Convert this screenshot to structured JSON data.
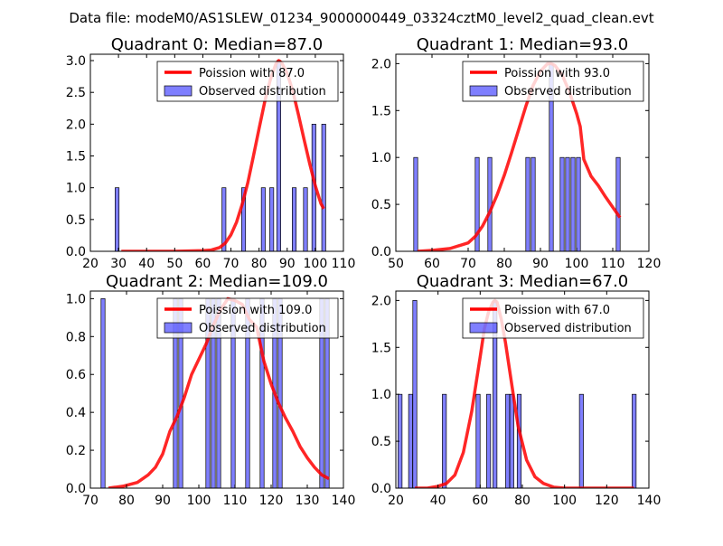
{
  "suptitle": "Data file: modeM0/AS1SLEW_01234_9000000449_03324cztM0_level2_quad_clean.evt",
  "chart_data": [
    {
      "type": "bar",
      "title": "Quadrant 0: Median=87.0",
      "xlim": [
        20,
        110
      ],
      "ylim": [
        0,
        3.1
      ],
      "xticks": [
        "20",
        "30",
        "40",
        "50",
        "60",
        "70",
        "80",
        "90",
        "100",
        "110"
      ],
      "yticks": [
        "0.0",
        "0.5",
        "1.0",
        "1.5",
        "2.0",
        "2.5",
        "3.0"
      ],
      "legend": {
        "position": "top-right",
        "line_label": "Poission with 87.0",
        "bar_label": "Observed distribution"
      },
      "bar_width": 1.4,
      "bars": [
        {
          "x": 29.5,
          "value": 1
        },
        {
          "x": 67.5,
          "value": 1
        },
        {
          "x": 74.5,
          "value": 1
        },
        {
          "x": 81.5,
          "value": 1
        },
        {
          "x": 84.5,
          "value": 1
        },
        {
          "x": 87.0,
          "value": 3
        },
        {
          "x": 92.5,
          "value": 1
        },
        {
          "x": 96.5,
          "value": 1
        },
        {
          "x": 99.5,
          "value": 2
        },
        {
          "x": 103.0,
          "value": 2
        }
      ],
      "curve": {
        "name": "Poission with 87.0",
        "x": [
          31,
          40,
          50,
          60,
          63,
          66,
          68,
          70,
          72,
          74,
          76,
          78,
          80,
          82,
          84,
          86,
          87,
          88,
          90,
          92,
          94,
          96,
          98,
          100,
          102,
          103
        ],
        "y": [
          0.0,
          0.0,
          0.0,
          0.01,
          0.02,
          0.06,
          0.13,
          0.26,
          0.46,
          0.74,
          1.08,
          1.5,
          1.93,
          2.35,
          2.7,
          2.95,
          3.0,
          2.97,
          2.8,
          2.52,
          2.15,
          1.76,
          1.38,
          1.03,
          0.75,
          0.67
        ]
      }
    },
    {
      "type": "bar",
      "title": "Quadrant 1: Median=93.0",
      "xlim": [
        50,
        120
      ],
      "ylim": [
        0,
        2.1
      ],
      "xticks": [
        "50",
        "60",
        "70",
        "80",
        "90",
        "100",
        "110",
        "120"
      ],
      "yticks": [
        "0.0",
        "0.5",
        "1.0",
        "1.5",
        "2.0"
      ],
      "legend": {
        "position": "top-right",
        "line_label": "Poission with 93.0",
        "bar_label": "Observed distribution"
      },
      "bar_width": 1.1,
      "bars": [
        {
          "x": 55.5,
          "value": 1
        },
        {
          "x": 72.5,
          "value": 1
        },
        {
          "x": 76.0,
          "value": 1
        },
        {
          "x": 86.5,
          "value": 1
        },
        {
          "x": 88.0,
          "value": 1
        },
        {
          "x": 93.0,
          "value": 2
        },
        {
          "x": 96.0,
          "value": 1
        },
        {
          "x": 97.5,
          "value": 1
        },
        {
          "x": 99.0,
          "value": 1
        },
        {
          "x": 100.5,
          "value": 1
        },
        {
          "x": 111.5,
          "value": 1
        }
      ],
      "curve": {
        "name": "Poission with 93.0",
        "x": [
          56,
          60,
          65,
          70,
          72,
          74,
          76,
          78,
          80,
          82,
          84,
          86,
          88,
          90,
          92,
          93,
          94,
          96,
          98,
          100,
          101,
          102,
          104,
          106,
          108,
          110,
          112
        ],
        "y": [
          0.0,
          0.01,
          0.03,
          0.09,
          0.16,
          0.27,
          0.42,
          0.6,
          0.81,
          1.05,
          1.3,
          1.55,
          1.77,
          1.92,
          2.0,
          2.0,
          1.98,
          1.88,
          1.7,
          1.47,
          1.33,
          0.98,
          0.8,
          0.7,
          0.58,
          0.47,
          0.36
        ]
      }
    },
    {
      "type": "bar",
      "title": "Quadrant 2: Median=109.0",
      "xlim": [
        70,
        140
      ],
      "ylim": [
        0,
        1.04
      ],
      "xticks": [
        "70",
        "80",
        "90",
        "100",
        "110",
        "120",
        "130",
        "140"
      ],
      "yticks": [
        "0.0",
        "0.2",
        "0.4",
        "0.6",
        "0.8",
        "1.0"
      ],
      "legend": {
        "position": "top-right",
        "line_label": "Poission with 109.0",
        "bar_label": "Observed distribution"
      },
      "bar_width": 1.1,
      "bars": [
        {
          "x": 73.5,
          "value": 1
        },
        {
          "x": 93.5,
          "value": 1
        },
        {
          "x": 95.0,
          "value": 1
        },
        {
          "x": 102.5,
          "value": 1
        },
        {
          "x": 104.0,
          "value": 1
        },
        {
          "x": 105.5,
          "value": 1
        },
        {
          "x": 109.5,
          "value": 1
        },
        {
          "x": 113.5,
          "value": 1
        },
        {
          "x": 117.5,
          "value": 1
        },
        {
          "x": 121.0,
          "value": 1
        },
        {
          "x": 122.5,
          "value": 1
        },
        {
          "x": 134.0,
          "value": 1
        },
        {
          "x": 135.5,
          "value": 1
        }
      ],
      "curve": {
        "name": "Poission with 109.0",
        "x": [
          75,
          79,
          83,
          86,
          88,
          90,
          92,
          94,
          96,
          98,
          100,
          102,
          104,
          106,
          108,
          110,
          112,
          114,
          116,
          118,
          120,
          122,
          124,
          126,
          128,
          130,
          132,
          134,
          136
        ],
        "y": [
          0.0,
          0.01,
          0.03,
          0.07,
          0.11,
          0.18,
          0.3,
          0.38,
          0.48,
          0.6,
          0.68,
          0.76,
          0.86,
          0.94,
          1.0,
          0.99,
          0.97,
          0.89,
          0.85,
          0.67,
          0.55,
          0.45,
          0.37,
          0.3,
          0.22,
          0.16,
          0.11,
          0.07,
          0.05
        ]
      }
    },
    {
      "type": "bar",
      "title": "Quadrant 3: Median=67.0",
      "xlim": [
        20,
        140
      ],
      "ylim": [
        0,
        2.1
      ],
      "xticks": [
        "20",
        "40",
        "60",
        "80",
        "100",
        "120",
        "140"
      ],
      "yticks": [
        "0.0",
        "0.5",
        "1.0",
        "1.5",
        "2.0"
      ],
      "legend": {
        "position": "top-right",
        "line_label": "Poission with 67.0",
        "bar_label": "Observed distribution"
      },
      "bar_width": 1.9,
      "bars": [
        {
          "x": 22.0,
          "value": 1
        },
        {
          "x": 27.0,
          "value": 1
        },
        {
          "x": 29.0,
          "value": 2
        },
        {
          "x": 43.0,
          "value": 1
        },
        {
          "x": 59.0,
          "value": 1
        },
        {
          "x": 64.0,
          "value": 1
        },
        {
          "x": 67.0,
          "value": 2
        },
        {
          "x": 73.0,
          "value": 1
        },
        {
          "x": 75.0,
          "value": 1
        },
        {
          "x": 78.5,
          "value": 1
        },
        {
          "x": 108.0,
          "value": 1
        },
        {
          "x": 133.0,
          "value": 1
        }
      ],
      "curve": {
        "name": "Poission with 67.0",
        "x": [
          29,
          35,
          40,
          44,
          48,
          52,
          56,
          60,
          62,
          64,
          66,
          67,
          68,
          70,
          72,
          74,
          76,
          78,
          82,
          86,
          90,
          95,
          100,
          110,
          120,
          133
        ],
        "y": [
          0.0,
          0.0,
          0.02,
          0.05,
          0.14,
          0.38,
          0.82,
          1.4,
          1.7,
          1.88,
          1.98,
          2.0,
          1.98,
          1.8,
          1.55,
          1.25,
          0.95,
          0.66,
          0.3,
          0.12,
          0.05,
          0.01,
          0.0,
          0.0,
          0.0,
          0.0
        ]
      }
    }
  ]
}
